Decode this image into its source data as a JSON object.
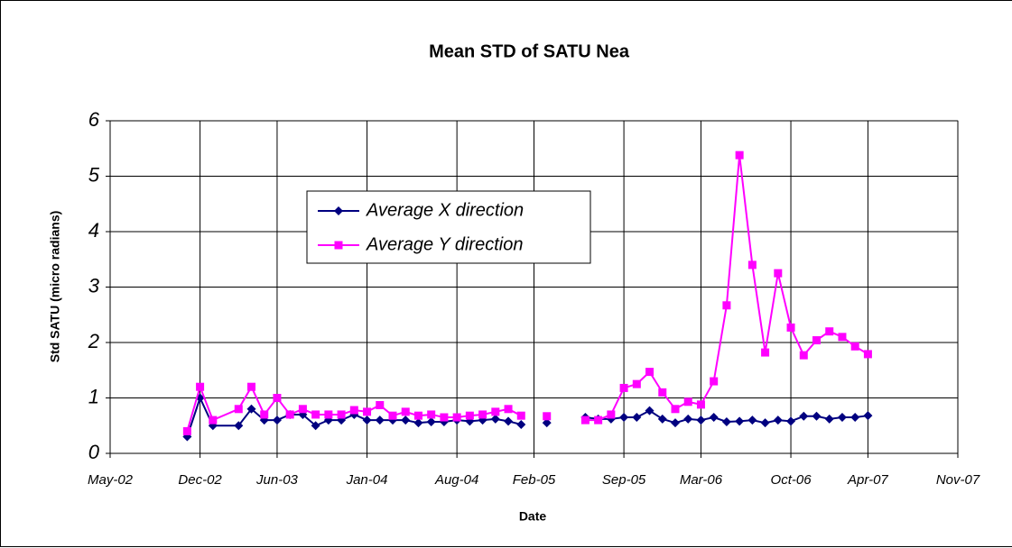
{
  "chart_data": {
    "type": "line",
    "title": "Mean STD of SATU Nea",
    "x_label": "Date",
    "y_label": "Std SATU (micro radians)",
    "x": [
      "2002-11",
      "2002-12",
      "2003-01",
      "2003-03",
      "2003-04",
      "2003-05",
      "2003-06",
      "2003-07",
      "2003-08",
      "2003-09",
      "2003-10",
      "2003-11",
      "2003-12",
      "2004-01",
      "2004-02",
      "2004-03",
      "2004-04",
      "2004-05",
      "2004-06",
      "2004-07",
      "2004-08",
      "2004-09",
      "2004-10",
      "2004-11",
      "2004-12",
      "2005-01",
      "2005-02",
      "2005-03",
      "2005-04",
      "2005-05",
      "2005-06",
      "2005-07",
      "2005-08",
      "2005-09",
      "2005-10",
      "2005-11",
      "2005-12",
      "2006-01",
      "2006-02",
      "2006-03",
      "2006-04",
      "2006-05",
      "2006-06",
      "2006-07",
      "2006-08",
      "2006-09",
      "2006-10",
      "2006-11",
      "2006-12",
      "2007-01",
      "2007-02",
      "2007-03",
      "2007-04"
    ],
    "series": [
      {
        "name": "Average X direction",
        "color": "#000080",
        "marker": "diamond",
        "values": [
          0.3,
          1.0,
          0.5,
          0.5,
          0.8,
          0.6,
          0.6,
          0.7,
          0.7,
          0.5,
          0.6,
          0.6,
          0.7,
          0.6,
          0.6,
          0.6,
          0.6,
          0.55,
          0.57,
          0.57,
          0.6,
          0.58,
          0.6,
          0.62,
          0.58,
          0.52,
          null,
          0.55,
          null,
          null,
          0.65,
          0.62,
          0.62,
          0.65,
          0.65,
          0.77,
          0.62,
          0.55,
          0.62,
          0.6,
          0.65,
          0.57,
          0.58,
          0.6,
          0.55,
          0.6,
          0.58,
          0.67,
          0.67,
          0.62,
          0.65,
          0.65,
          0.68
        ]
      },
      {
        "name": "Average Y direction",
        "color": "#ff00ff",
        "marker": "square",
        "values": [
          0.4,
          1.2,
          0.6,
          0.8,
          1.2,
          0.7,
          1.0,
          0.7,
          0.8,
          0.7,
          0.7,
          0.7,
          0.78,
          0.75,
          0.87,
          0.68,
          0.75,
          0.68,
          0.7,
          0.65,
          0.65,
          0.68,
          0.7,
          0.75,
          0.8,
          0.68,
          null,
          0.67,
          null,
          null,
          0.6,
          0.6,
          0.7,
          1.18,
          1.25,
          1.47,
          1.1,
          0.8,
          0.93,
          0.88,
          1.3,
          2.67,
          5.38,
          3.4,
          1.82,
          3.25,
          2.27,
          1.77,
          2.04,
          2.2,
          2.1,
          1.93,
          1.79
        ]
      }
    ],
    "xlim": [
      "2002-05",
      "2007-11"
    ],
    "xticks": [
      {
        "value": "2002-05",
        "label": "May-02"
      },
      {
        "value": "2002-12",
        "label": "Dec-02"
      },
      {
        "value": "2003-06",
        "label": "Jun-03"
      },
      {
        "value": "2004-01",
        "label": "Jan-04"
      },
      {
        "value": "2004-08",
        "label": "Aug-04"
      },
      {
        "value": "2005-02",
        "label": "Feb-05"
      },
      {
        "value": "2005-09",
        "label": "Sep-05"
      },
      {
        "value": "2006-03",
        "label": "Mar-06"
      },
      {
        "value": "2006-10",
        "label": "Oct-06"
      },
      {
        "value": "2007-04",
        "label": "Apr-07"
      },
      {
        "value": "2007-11",
        "label": "Nov-07"
      }
    ],
    "ylim": [
      0,
      6
    ],
    "yticks": [
      0,
      1,
      2,
      3,
      4,
      5,
      6
    ],
    "grid": true
  }
}
